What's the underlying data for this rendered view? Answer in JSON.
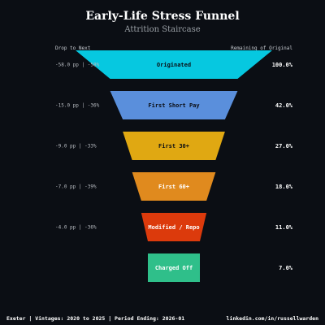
{
  "chart_data": {
    "type": "funnel",
    "title": "Early-Life Stress Funnel",
    "subtitle": "Attrition Staircase",
    "left_header": "Drop to Next",
    "right_header": "Remaining of Original",
    "stages": [
      {
        "label": "Originated",
        "value": 100.0,
        "remaining_text": "100.0%",
        "drop_text": "-58.0 pp | -58%",
        "color": "#06c8e0",
        "label_color": "#0b0e14"
      },
      {
        "label": "First Short Pay",
        "value": 42.0,
        "remaining_text": "42.0%",
        "drop_text": "-15.0 pp | -36%",
        "color": "#5a8fdc",
        "label_color": "#0b0e14"
      },
      {
        "label": "First 30+",
        "value": 27.0,
        "remaining_text": "27.0%",
        "drop_text": "-9.0 pp | -33%",
        "color": "#e0a812",
        "label_color": "#0b0e14"
      },
      {
        "label": "First 60+",
        "value": 18.0,
        "remaining_text": "18.0%",
        "drop_text": "-7.0 pp | -39%",
        "color": "#e08a1e",
        "label_color": "#ffffff"
      },
      {
        "label": "Modified / Repo",
        "value": 11.0,
        "remaining_text": "11.0%",
        "drop_text": "-4.0 pp | -36%",
        "color": "#dc3a0c",
        "label_color": "#ffffff"
      },
      {
        "label": "Charged Off",
        "value": 7.0,
        "remaining_text": "7.0%",
        "drop_text": "",
        "color": "#2fbf8a",
        "label_color": "#ffffff"
      }
    ]
  },
  "footer": {
    "left": "Exeter | Vintages: 2020 to 2025 | Period Ending: 2026-01",
    "right": "linkedin.com/in/russellwarden"
  }
}
